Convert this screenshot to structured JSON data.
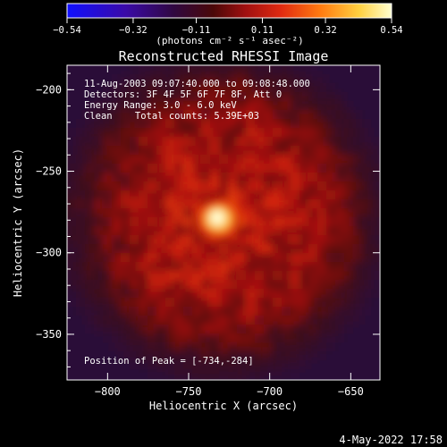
{
  "colorbar": {
    "ticks": [
      "-0.54",
      "-0.32",
      "-0.11",
      "0.11",
      "0.32",
      "0.54"
    ],
    "tick_values": [
      -0.54,
      -0.32,
      -0.11,
      0.11,
      0.32,
      0.54
    ],
    "range": [
      -0.54,
      0.54
    ],
    "units_label": "(photons cm⁻² s⁻¹ asec⁻²)"
  },
  "image": {
    "title": "Reconstructed RHESSI Image",
    "info_lines": [
      "11-Aug-2003 09:07:40.000 to 09:08:48.000",
      "Detectors: 3F 4F 5F 6F 7F 8F, Att 0",
      "Energy Range: 3.0 - 6.0 keV",
      "Clean    Total counts: 5.39E+03"
    ],
    "peak_label": "Position of Peak = [-734,-284]"
  },
  "timestamp": "4-May-2022 17:58",
  "chart_data": {
    "type": "heatmap",
    "title": "Reconstructed RHESSI Image",
    "xlabel": "Heliocentric X (arcsec)",
    "ylabel": "Heliocentric Y (arcsec)",
    "xlim": [
      -825,
      -632
    ],
    "ylim": [
      -378,
      -185
    ],
    "xticks": [
      -800,
      -750,
      -700,
      -650
    ],
    "yticks": [
      -200,
      -250,
      -300,
      -350
    ],
    "xtick_labels": [
      "−800",
      "−750",
      "−700",
      "−650"
    ],
    "ytick_labels": [
      "−200",
      "−250",
      "−300",
      "−350"
    ],
    "colormap": "red-temperature",
    "peak": {
      "x": -734,
      "y": -284,
      "value": 0.54
    },
    "source_center": {
      "x": -732,
      "y": -275
    },
    "source_radius": 88
  },
  "colors": {
    "background": "#000000",
    "axes": "#ffffff",
    "text": "#ffffff"
  }
}
